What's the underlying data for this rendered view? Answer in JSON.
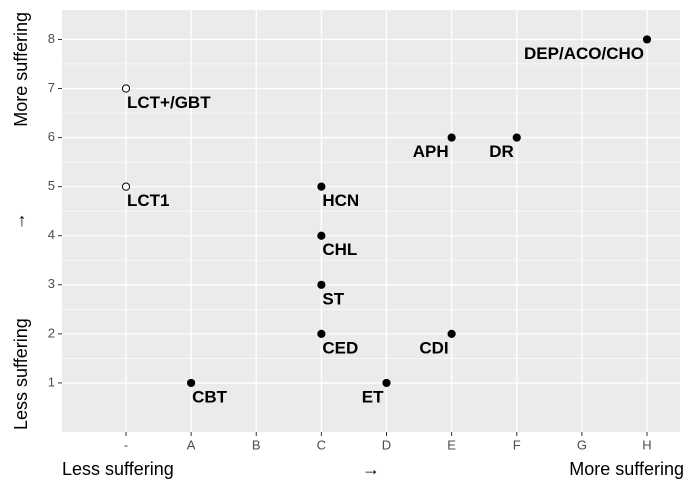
{
  "chart_data": {
    "type": "scatter",
    "categories": [
      "-",
      "A",
      "B",
      "C",
      "D",
      "E",
      "F",
      "G",
      "H"
    ],
    "ylim": [
      0,
      8.6
    ],
    "yticks": [
      1,
      2,
      3,
      4,
      5,
      6,
      7,
      8
    ],
    "grid": true,
    "x_axis_label": {
      "left": "Less suffering",
      "middle": "→",
      "right": "More suffering"
    },
    "y_axis_label": {
      "bottom": "Less suffering",
      "middle": "↑",
      "top": "More suffering"
    },
    "points": [
      {
        "label": "LCT+/GBT",
        "x": "-",
        "y": 7,
        "marker": "open"
      },
      {
        "label": "LCT1",
        "x": "-",
        "y": 5,
        "marker": "open"
      },
      {
        "label": "CBT",
        "x": "A",
        "y": 1,
        "marker": "filled"
      },
      {
        "label": "HCN",
        "x": "C",
        "y": 5,
        "marker": "filled"
      },
      {
        "label": "CHL",
        "x": "C",
        "y": 4,
        "marker": "filled"
      },
      {
        "label": "ST",
        "x": "C",
        "y": 3,
        "marker": "filled"
      },
      {
        "label": "CED",
        "x": "C",
        "y": 2,
        "marker": "filled"
      },
      {
        "label": "ET",
        "x": "D",
        "y": 1,
        "marker": "filled"
      },
      {
        "label": "CDI",
        "x": "E",
        "y": 2,
        "marker": "filled"
      },
      {
        "label": "APH",
        "x": "E",
        "y": 6,
        "marker": "filled"
      },
      {
        "label": "DR",
        "x": "F",
        "y": 6,
        "marker": "filled"
      },
      {
        "label": "DEP/ACO/CHO",
        "x": "H",
        "y": 8,
        "marker": "filled"
      }
    ]
  }
}
